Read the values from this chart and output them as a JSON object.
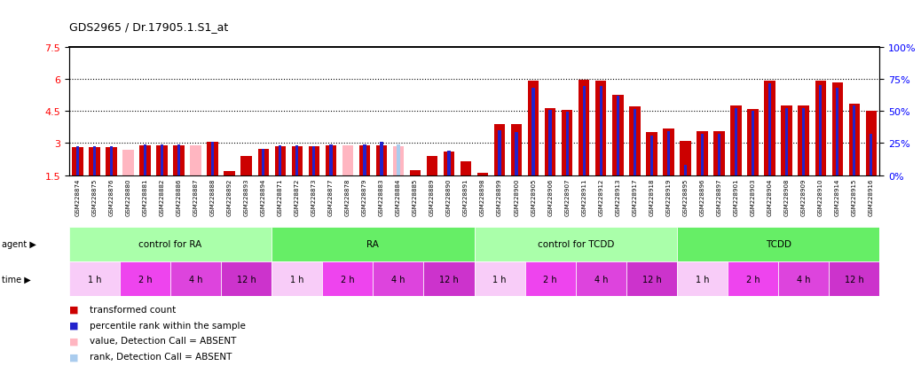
{
  "title": "GDS2965 / Dr.17905.1.S1_at",
  "samples": [
    "GSM228874",
    "GSM228875",
    "GSM228876",
    "GSM228880",
    "GSM228881",
    "GSM228882",
    "GSM228886",
    "GSM228887",
    "GSM228888",
    "GSM228892",
    "GSM228893",
    "GSM228894",
    "GSM228871",
    "GSM228872",
    "GSM228873",
    "GSM228877",
    "GSM228878",
    "GSM228879",
    "GSM228883",
    "GSM228884",
    "GSM228885",
    "GSM228889",
    "GSM228890",
    "GSM228891",
    "GSM228898",
    "GSM228899",
    "GSM228900",
    "GSM228905",
    "GSM228906",
    "GSM228907",
    "GSM228911",
    "GSM228912",
    "GSM228913",
    "GSM228917",
    "GSM228918",
    "GSM228919",
    "GSM228895",
    "GSM228896",
    "GSM228897",
    "GSM228901",
    "GSM228903",
    "GSM228904",
    "GSM228908",
    "GSM228909",
    "GSM228910",
    "GSM228914",
    "GSM228915",
    "GSM228916"
  ],
  "red_values": [
    2.8,
    2.8,
    2.8,
    2.7,
    2.9,
    2.9,
    2.9,
    2.9,
    3.05,
    1.7,
    2.4,
    2.75,
    2.85,
    2.85,
    2.85,
    2.9,
    2.9,
    2.9,
    2.9,
    2.85,
    1.75,
    2.4,
    2.6,
    2.15,
    1.6,
    3.9,
    3.9,
    5.9,
    4.65,
    4.55,
    5.95,
    5.9,
    5.25,
    4.7,
    3.5,
    3.7,
    3.1,
    3.55,
    3.55,
    4.75,
    4.6,
    5.9,
    4.75,
    4.75,
    5.9,
    5.85,
    4.85,
    4.5
  ],
  "blue_values": [
    2.85,
    2.85,
    2.85,
    0.0,
    2.95,
    2.95,
    2.95,
    0.0,
    3.05,
    0.0,
    0.0,
    2.75,
    2.9,
    2.9,
    2.85,
    2.95,
    0.0,
    2.95,
    3.05,
    2.95,
    0.0,
    0.0,
    2.65,
    0.0,
    0.3,
    3.6,
    3.5,
    5.6,
    4.55,
    4.45,
    5.65,
    5.65,
    5.2,
    4.6,
    3.35,
    3.55,
    2.0,
    3.45,
    3.45,
    4.65,
    4.5,
    5.8,
    4.65,
    4.65,
    5.7,
    5.6,
    4.75,
    3.45
  ],
  "absent_red": [
    false,
    false,
    false,
    true,
    false,
    false,
    false,
    true,
    false,
    false,
    false,
    false,
    false,
    false,
    false,
    false,
    true,
    false,
    false,
    true,
    false,
    false,
    false,
    false,
    false,
    false,
    false,
    false,
    false,
    false,
    false,
    false,
    false,
    false,
    false,
    false,
    false,
    false,
    false,
    false,
    false,
    false,
    false,
    false,
    false,
    false,
    false,
    false
  ],
  "absent_blue": [
    false,
    false,
    false,
    true,
    false,
    false,
    false,
    true,
    false,
    true,
    true,
    false,
    false,
    false,
    false,
    false,
    true,
    false,
    false,
    true,
    true,
    true,
    false,
    true,
    false,
    false,
    false,
    false,
    false,
    false,
    false,
    false,
    false,
    false,
    false,
    false,
    false,
    false,
    false,
    false,
    false,
    false,
    false,
    false,
    false,
    false,
    false,
    false
  ],
  "agent_groups": [
    {
      "label": "control for RA",
      "start": 0,
      "end": 12
    },
    {
      "label": "RA",
      "start": 12,
      "end": 24
    },
    {
      "label": "control for TCDD",
      "start": 24,
      "end": 36
    },
    {
      "label": "TCDD",
      "start": 36,
      "end": 48
    }
  ],
  "time_groups": [
    {
      "label": "1 h",
      "start": 0,
      "end": 3
    },
    {
      "label": "2 h",
      "start": 3,
      "end": 6
    },
    {
      "label": "4 h",
      "start": 6,
      "end": 9
    },
    {
      "label": "12 h",
      "start": 9,
      "end": 12
    },
    {
      "label": "1 h",
      "start": 12,
      "end": 15
    },
    {
      "label": "2 h",
      "start": 15,
      "end": 18
    },
    {
      "label": "4 h",
      "start": 18,
      "end": 21
    },
    {
      "label": "12 h",
      "start": 21,
      "end": 24
    },
    {
      "label": "1 h",
      "start": 24,
      "end": 27
    },
    {
      "label": "2 h",
      "start": 27,
      "end": 30
    },
    {
      "label": "4 h",
      "start": 30,
      "end": 33
    },
    {
      "label": "12 h",
      "start": 33,
      "end": 36
    },
    {
      "label": "1 h",
      "start": 36,
      "end": 39
    },
    {
      "label": "2 h",
      "start": 39,
      "end": 42
    },
    {
      "label": "4 h",
      "start": 42,
      "end": 45
    },
    {
      "label": "12 h",
      "start": 45,
      "end": 48
    }
  ],
  "ylim_left": [
    1.5,
    7.5
  ],
  "ylim_right": [
    0,
    100
  ],
  "yticks_left": [
    1.5,
    3.0,
    4.5,
    6.0,
    7.5
  ],
  "yticks_right": [
    0,
    25,
    50,
    75,
    100
  ],
  "red_color": "#CC0000",
  "red_absent_color": "#FFB6C1",
  "blue_color": "#2222CC",
  "blue_absent_color": "#AACCEE",
  "agent_color_light": "#AAFFAA",
  "agent_color_dark": "#66EE66",
  "time_color_1h": "#FFCCEE",
  "time_color_other": "#EE44EE",
  "xticklabel_bg": "#DDDDDD"
}
